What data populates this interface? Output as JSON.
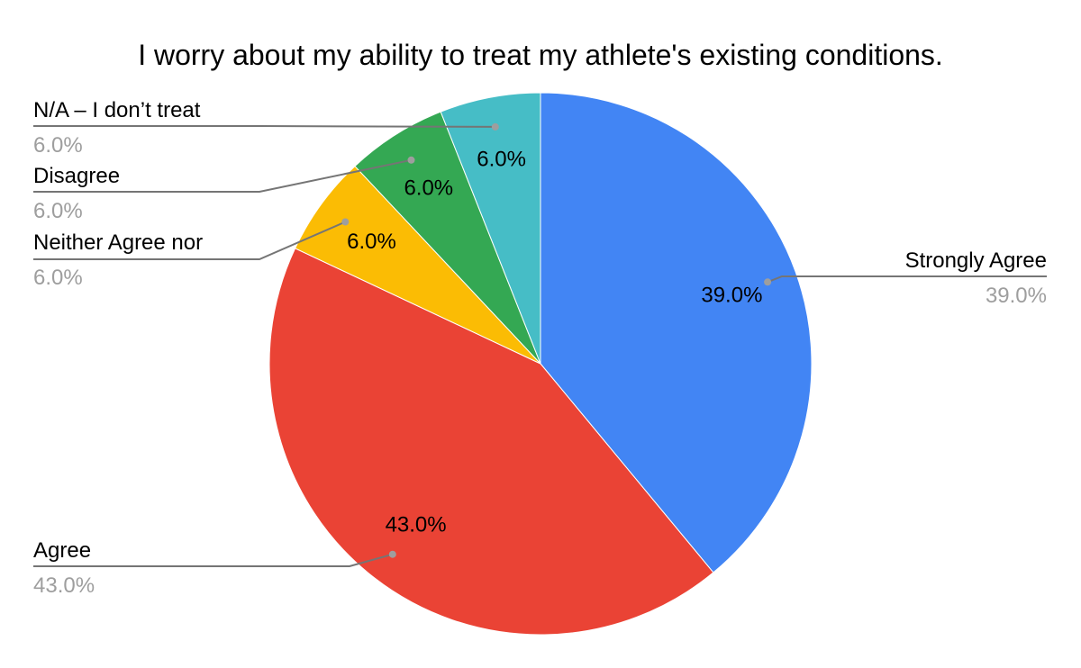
{
  "chart_data": {
    "type": "pie",
    "title": "I worry about my ability to treat my athlete's existing conditions.",
    "start_angle_deg": 0,
    "direction": "clockwise",
    "slices": [
      {
        "label": "Strongly Agree",
        "value": 39.0,
        "display": "39.0%",
        "color": "#4285f4",
        "callout_side": "right"
      },
      {
        "label": "Agree",
        "value": 43.0,
        "display": "43.0%",
        "color": "#ea4335",
        "callout_side": "left"
      },
      {
        "label": "Neither Agree nor",
        "value": 6.0,
        "display": "6.0%",
        "color": "#fbbc04",
        "callout_side": "left"
      },
      {
        "label": "Disagree",
        "value": 6.0,
        "display": "6.0%",
        "color": "#34a853",
        "callout_side": "left"
      },
      {
        "label": "N/A – I don’t treat",
        "value": 6.0,
        "display": "6.0%",
        "color": "#46bdc6",
        "callout_side": "left"
      }
    ],
    "legend": "callouts"
  }
}
